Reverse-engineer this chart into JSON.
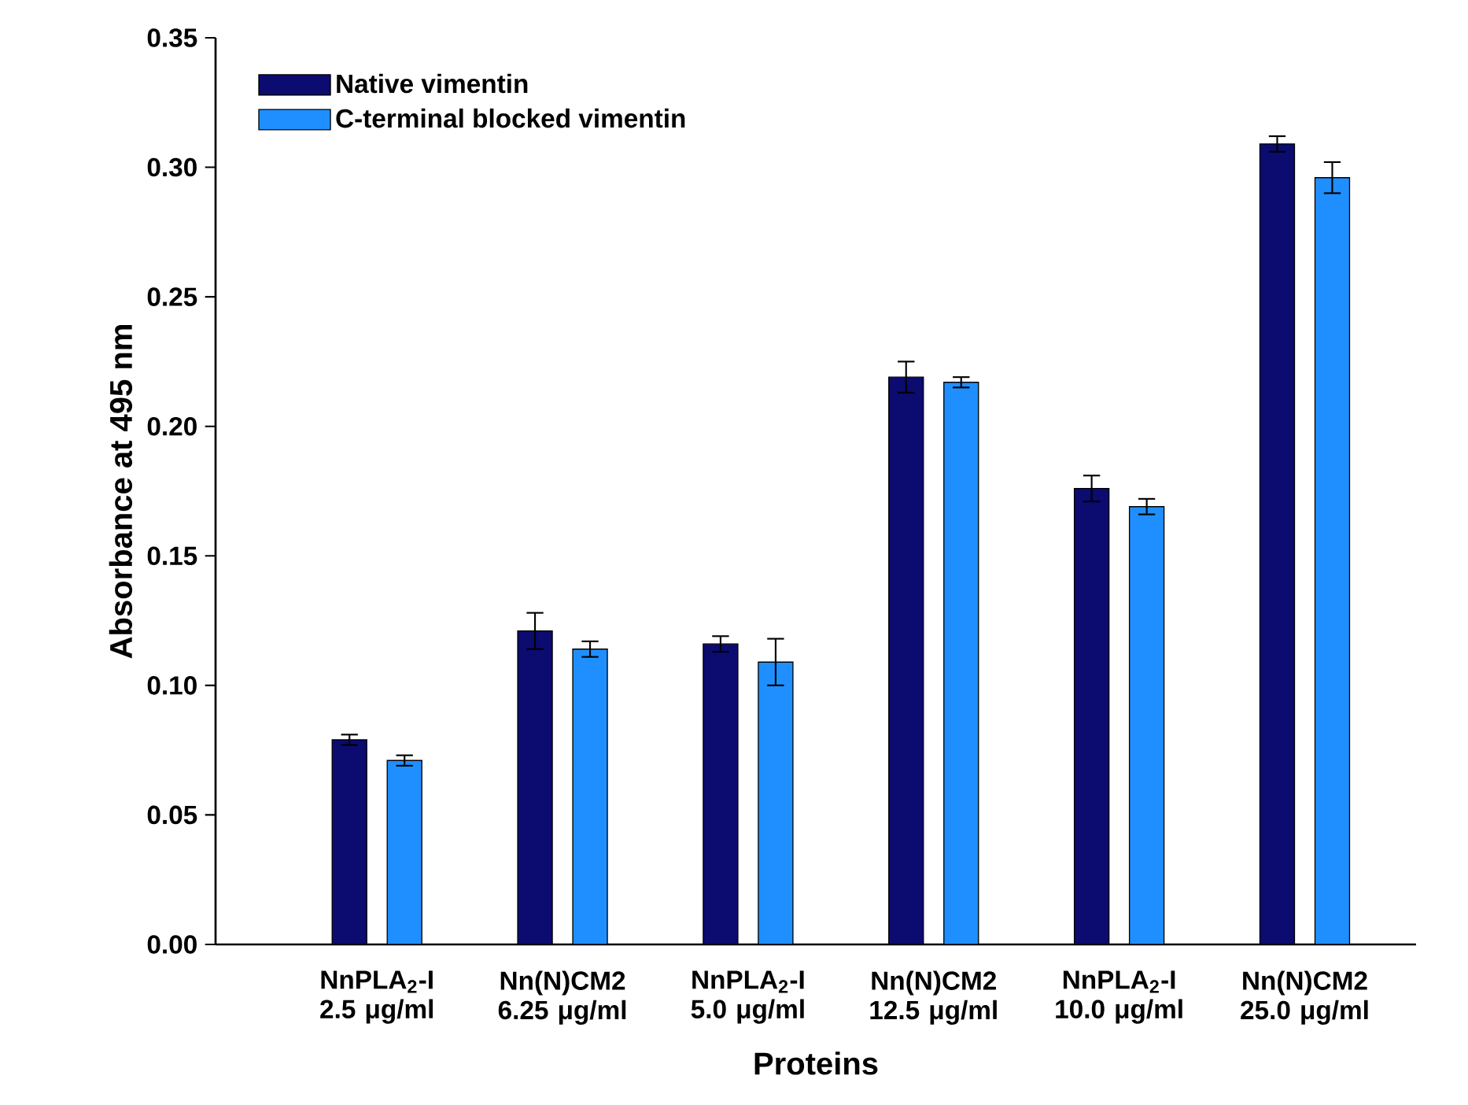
{
  "chart_data": {
    "type": "bar",
    "xlabel": "Proteins",
    "ylabel": "Absorbance at 495 nm",
    "categories": [
      "NnPLA$_{2}$-I 2.5 μg/ml",
      "Nn(N)CM2 6.25 μg/ml",
      "NnPLA$_{2}$-I 5.0 μg/ml",
      "Nn(N)CM2 12.5 μg/ml",
      "NnPLA$_{2}$-I 10.0 μg/ml",
      "Nn(N)CM2 25.0 μg/ml"
    ],
    "series": [
      {
        "name": "Native vimentin",
        "color": "#0b0b70",
        "values": [
          0.079,
          0.121,
          0.116,
          0.219,
          0.176,
          0.309
        ],
        "errors": [
          0.002,
          0.007,
          0.003,
          0.006,
          0.005,
          0.003
        ]
      },
      {
        "name": "C-terminal blocked vimentin",
        "color": "#1f8fff",
        "values": [
          0.071,
          0.114,
          0.109,
          0.217,
          0.169,
          0.296
        ],
        "errors": [
          0.002,
          0.003,
          0.009,
          0.002,
          0.003,
          0.006
        ]
      }
    ],
    "ylim": [
      0,
      0.35
    ],
    "yticks": [
      {
        "value": 0,
        "label": "0.00"
      },
      {
        "value": 0.05,
        "label": "0.05"
      },
      {
        "value": 0.1,
        "label": "0.10"
      },
      {
        "value": 0.15,
        "label": "0.15"
      },
      {
        "value": 0.2,
        "label": "0.20"
      },
      {
        "value": 0.25,
        "label": "0.25"
      },
      {
        "value": 0.3,
        "label": "0.30"
      },
      {
        "value": 0.35,
        "label": "0.35"
      }
    ],
    "legend": "top left",
    "grid": false
  }
}
